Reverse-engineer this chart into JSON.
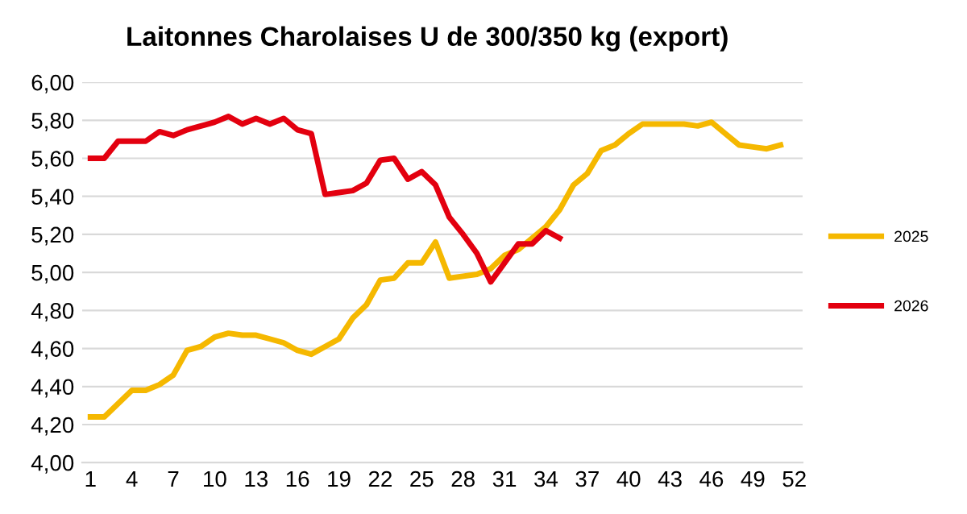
{
  "chart_data": {
    "type": "line",
    "title": "Laitonnes Charolaises U de 300/350 kg (export)",
    "categories": [
      "1",
      null,
      null,
      "4",
      null,
      null,
      "7",
      null,
      null,
      "10",
      null,
      null,
      "13",
      null,
      null,
      "16",
      null,
      null,
      "19",
      null,
      null,
      "22",
      null,
      null,
      "25",
      null,
      null,
      "28",
      null,
      null,
      "31",
      null,
      null,
      "34",
      null,
      null,
      "37",
      null,
      null,
      "40",
      null,
      null,
      "43",
      null,
      null,
      "46",
      null,
      null,
      "49",
      null,
      null,
      "52"
    ],
    "series": [
      {
        "name": "2025",
        "color": "#f5b800",
        "values": [
          4.24,
          4.24,
          4.31,
          4.38,
          4.38,
          4.41,
          4.46,
          4.59,
          4.61,
          4.66,
          4.68,
          4.67,
          4.67,
          4.65,
          4.63,
          4.59,
          4.57,
          4.61,
          4.65,
          4.76,
          4.83,
          4.96,
          4.97,
          5.05,
          5.05,
          5.16,
          4.97,
          4.98,
          4.99,
          5.02,
          5.09,
          5.12,
          5.18,
          5.24,
          5.33,
          5.46,
          5.52,
          5.64,
          5.67,
          5.73,
          5.78,
          5.78,
          5.78,
          5.78,
          5.77,
          5.79,
          5.73,
          5.67,
          5.66,
          5.65,
          5.67,
          null
        ]
      },
      {
        "name": "2026",
        "color": "#e3000f",
        "values": [
          5.6,
          5.6,
          5.69,
          5.69,
          5.69,
          5.74,
          5.72,
          5.75,
          5.77,
          5.79,
          5.82,
          5.78,
          5.81,
          5.78,
          5.81,
          5.75,
          5.73,
          5.41,
          5.42,
          5.43,
          5.47,
          5.59,
          5.6,
          5.49,
          5.53,
          5.46,
          5.29,
          5.2,
          5.1,
          4.95,
          5.05,
          5.15,
          5.15,
          5.22,
          5.18,
          null,
          null,
          null,
          null,
          null,
          null,
          null,
          null,
          null,
          null,
          null,
          null,
          null,
          null,
          null,
          null,
          null
        ]
      }
    ],
    "ylim": [
      4.0,
      6.0
    ],
    "yticks": [
      {
        "value": 4.0,
        "label": "4,00"
      },
      {
        "value": 4.2,
        "label": "4,20"
      },
      {
        "value": 4.4,
        "label": "4,40"
      },
      {
        "value": 4.6,
        "label": "4,60"
      },
      {
        "value": 4.8,
        "label": "4,80"
      },
      {
        "value": 5.0,
        "label": "5,00"
      },
      {
        "value": 5.2,
        "label": "5,20"
      },
      {
        "value": 5.4,
        "label": "5,40"
      },
      {
        "value": 5.6,
        "label": "5,60"
      },
      {
        "value": 5.8,
        "label": "5,80"
      },
      {
        "value": 6.0,
        "label": "6,00"
      }
    ],
    "grid": "y",
    "legend": "right",
    "marker": "none",
    "line_style": "solid"
  }
}
